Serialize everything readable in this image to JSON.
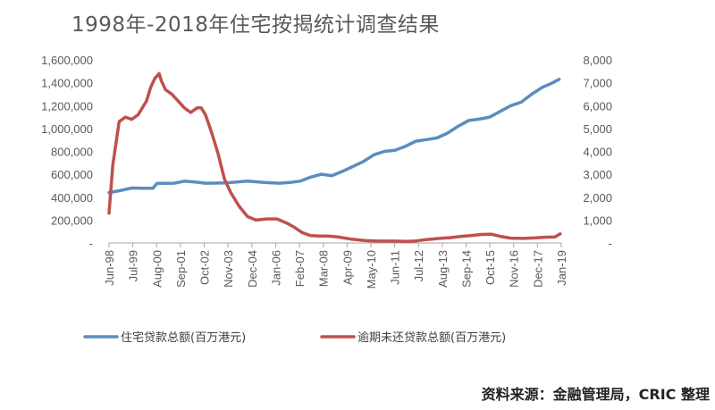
{
  "title": "1998年-2018年住宅按揭统计调查结果",
  "source": "资料来源：金融管理局，CRIC 整理",
  "colors": {
    "series1": "#5B8DBE",
    "series2": "#C0504D",
    "axis": "#A6A6A6",
    "text": "#595959"
  },
  "chart_data": {
    "type": "line",
    "categories": [
      "Jun-98",
      "Jul-99",
      "Aug-00",
      "Sep-01",
      "Oct-02",
      "Nov-03",
      "Dec-04",
      "Jan-06",
      "Feb-07",
      "Mar-08",
      "Apr-09",
      "May-10",
      "Jun-11",
      "Jul-12",
      "Aug-13",
      "Sep-14",
      "Oct-15",
      "Nov-16",
      "Dec-17",
      "Jan-19"
    ],
    "y_left": {
      "ticks": [
        "-",
        "200,000",
        "400,000",
        "600,000",
        "800,000",
        "1,000,000",
        "1,200,000",
        "1,400,000",
        "1,600,000"
      ],
      "range": [
        0,
        1600000
      ]
    },
    "y_right": {
      "ticks": [
        "-",
        "1,000",
        "2,000",
        "3,000",
        "4,000",
        "5,000",
        "6,000",
        "7,000",
        "8,000"
      ],
      "range": [
        0,
        8000
      ]
    },
    "grid": false,
    "legend_position": "bottom",
    "series": [
      {
        "name": "住宅贷款总额(百万港元)",
        "axis": "left",
        "x": [
          1998.42,
          1999.0,
          1999.5,
          2000.0,
          2000.5,
          2000.7,
          2001.5,
          2002.0,
          2002.5,
          2003.0,
          2004.0,
          2005.0,
          2005.8,
          2006.5,
          2007.0,
          2007.5,
          2008.0,
          2008.5,
          2009.0,
          2009.5,
          2010.0,
          2010.5,
          2011.0,
          2011.5,
          2012.0,
          2012.5,
          2013.0,
          2013.5,
          2014.0,
          2014.5,
          2015.0,
          2015.5,
          2016.0,
          2016.5,
          2017.0,
          2017.5,
          2018.0,
          2018.5,
          2019.0,
          2019.5,
          2019.8
        ],
        "values": [
          440000,
          460000,
          480000,
          478000,
          478000,
          520000,
          522000,
          540000,
          532000,
          522000,
          525000,
          540000,
          528000,
          522000,
          528000,
          540000,
          575000,
          600000,
          588000,
          625000,
          668000,
          712000,
          770000,
          800000,
          810000,
          845000,
          890000,
          903000,
          918000,
          960000,
          1020000,
          1070000,
          1082000,
          1100000,
          1150000,
          1200000,
          1230000,
          1300000,
          1360000,
          1400000,
          1430000
        ]
      },
      {
        "name": "逾期未还贷款总额(百万港元)",
        "axis": "right",
        "x": [
          1998.42,
          1998.6,
          1998.9,
          1999.2,
          1999.5,
          1999.8,
          2000.0,
          2000.2,
          2000.4,
          2000.6,
          2000.8,
          2000.9,
          2001.1,
          2001.4,
          2001.7,
          2002.0,
          2002.3,
          2002.6,
          2002.8,
          2003.0,
          2003.3,
          2003.6,
          2003.9,
          2004.2,
          2004.6,
          2005.0,
          2005.4,
          2005.9,
          2006.4,
          2006.9,
          2007.2,
          2007.6,
          2008.0,
          2008.4,
          2008.8,
          2009.3,
          2009.9,
          2010.6,
          2011.2,
          2011.9,
          2012.6,
          2013.0,
          2013.5,
          2014.1,
          2014.6,
          2015.1,
          2015.6,
          2016.1,
          2016.6,
          2017.0,
          2017.5,
          2018.1,
          2018.6,
          2019.1,
          2019.6,
          2019.85
        ],
        "values": [
          1300,
          3400,
          5300,
          5500,
          5400,
          5600,
          5900,
          6200,
          6800,
          7200,
          7400,
          7100,
          6700,
          6500,
          6200,
          5900,
          5700,
          5900,
          5900,
          5600,
          4800,
          3900,
          2800,
          2200,
          1600,
          1150,
          1000,
          1050,
          1050,
          850,
          700,
          450,
          320,
          300,
          300,
          260,
          170,
          100,
          80,
          80,
          70,
          90,
          150,
          200,
          230,
          280,
          320,
          370,
          380,
          290,
          210,
          200,
          220,
          250,
          260,
          400
        ]
      }
    ]
  }
}
